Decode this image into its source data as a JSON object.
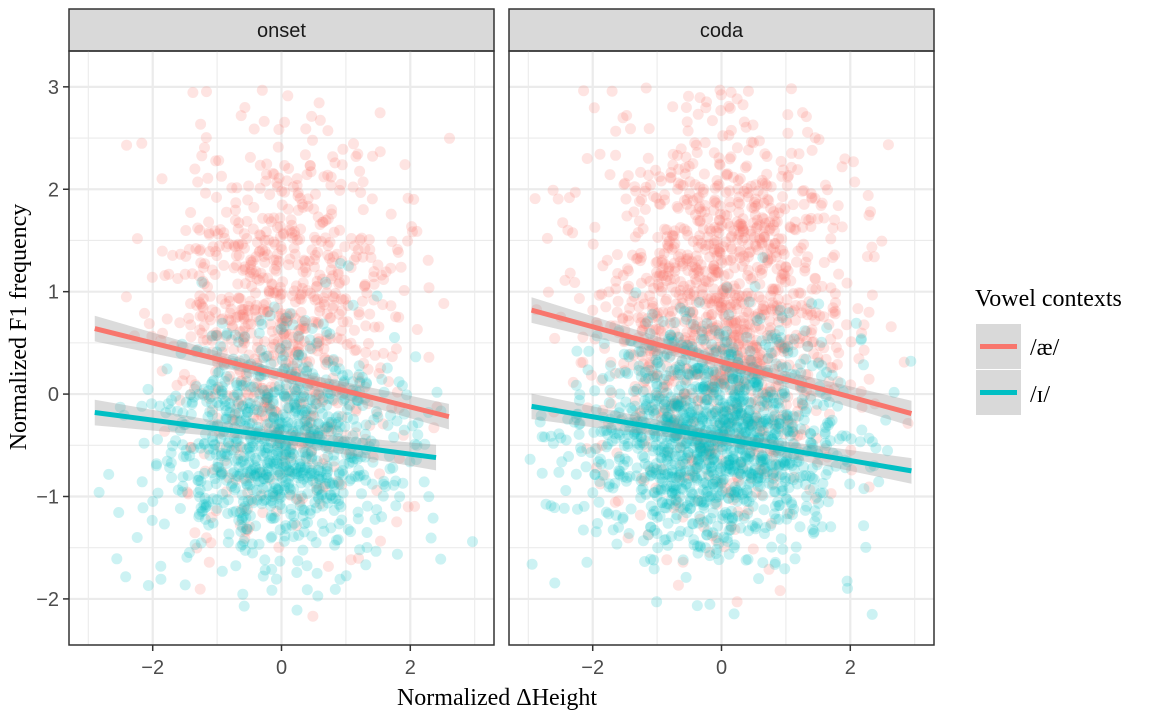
{
  "chart_data": {
    "type": "scatter",
    "xlabel": "Normalized ΔHeight",
    "ylabel": "Normalized F1 frequency",
    "xlim": [
      -3.3,
      3.3
    ],
    "ylim": [
      -2.45,
      3.35
    ],
    "x_ticks": [
      -2,
      0,
      2
    ],
    "y_ticks": [
      -2,
      -1,
      0,
      1,
      2,
      3
    ],
    "x_tick_labels": [
      "−2",
      "0",
      "2"
    ],
    "y_tick_labels": [
      "−2",
      "−1",
      "0",
      "1",
      "2",
      "3"
    ],
    "grid": true,
    "legend": {
      "title": "Vowel contexts",
      "placement": "right",
      "entries": [
        "/æ/",
        "/ɪ/"
      ]
    },
    "series_colors": [
      "#F8766D",
      "#00BFC4"
    ],
    "panels": [
      {
        "title": "onset",
        "fit_lines": [
          {
            "series": "/æ/",
            "x": [
              -2.9,
              2.6
            ],
            "y": [
              0.64,
              -0.22
            ]
          },
          {
            "series": "/ɪ/",
            "x": [
              -2.9,
              2.4
            ],
            "y": [
              -0.18,
              -0.62
            ]
          }
        ],
        "clouds": [
          {
            "series": "/æ/",
            "cx": 0.0,
            "cy": 0.8,
            "sx": 0.9,
            "sy": 0.95,
            "n": 850,
            "seed": 11
          },
          {
            "series": "/ɪ/",
            "cx": -0.1,
            "cy": -0.55,
            "sx": 0.9,
            "sy": 0.55,
            "n": 900,
            "seed": 23
          }
        ]
      },
      {
        "title": "coda",
        "fit_lines": [
          {
            "series": "/æ/",
            "x": [
              -2.95,
              2.95
            ],
            "y": [
              0.82,
              -0.19
            ]
          },
          {
            "series": "/ɪ/",
            "x": [
              -2.95,
              2.95
            ],
            "y": [
              -0.12,
              -0.75
            ]
          }
        ],
        "clouds": [
          {
            "series": "/æ/",
            "cx": 0.0,
            "cy": 0.9,
            "sx": 1.0,
            "sy": 1.0,
            "n": 1300,
            "seed": 37
          },
          {
            "series": "/ɪ/",
            "cx": -0.1,
            "cy": -0.45,
            "sx": 1.0,
            "sy": 0.55,
            "n": 1300,
            "seed": 53
          }
        ]
      }
    ]
  }
}
